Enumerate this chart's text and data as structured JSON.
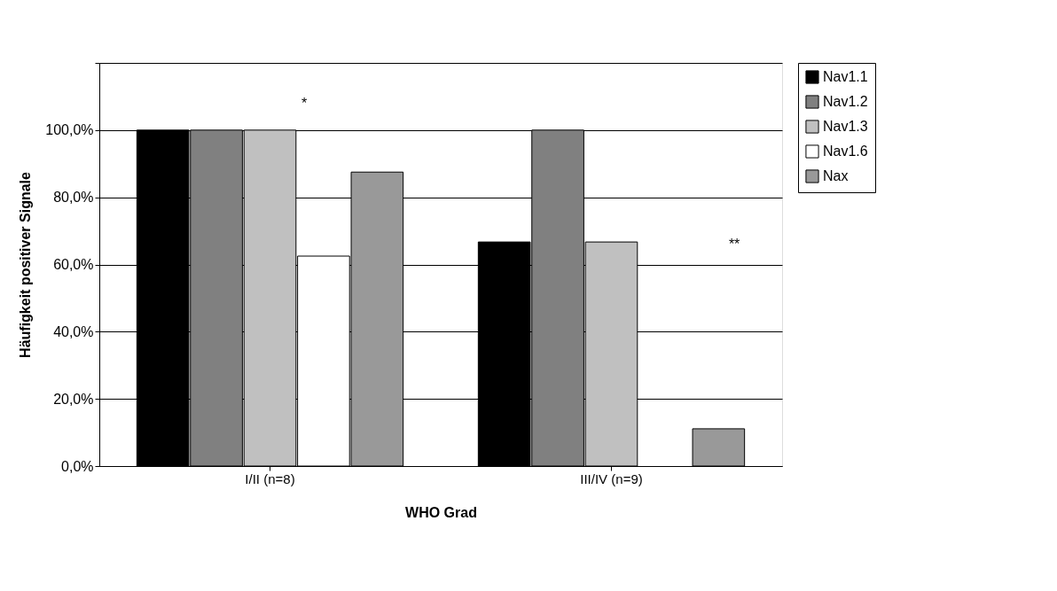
{
  "chart_data": {
    "type": "bar",
    "xlabel": "WHO Grad",
    "ylabel": "Häufigkeit positiver Signale",
    "categories": [
      "I/II (n=8)",
      "III/IV (n=9)"
    ],
    "series": [
      {
        "name": "Nav1.1",
        "color": "#000000",
        "values": [
          100,
          66.7
        ]
      },
      {
        "name": "Nav1.2",
        "color": "#808080",
        "values": [
          100,
          100
        ]
      },
      {
        "name": "Nav1.3",
        "color": "#c0c0c0",
        "values": [
          100,
          66.7
        ]
      },
      {
        "name": "Nav1.6",
        "color": "#ffffff",
        "values": [
          62.5,
          null
        ]
      },
      {
        "name": "Nax",
        "color": "#999999",
        "values": [
          87.5,
          11.1
        ]
      }
    ],
    "ylim": [
      0,
      120
    ],
    "yticks": [
      {
        "value": 0,
        "label": "0,0%"
      },
      {
        "value": 20,
        "label": "20,0%"
      },
      {
        "value": 40,
        "label": "40,0%"
      },
      {
        "value": 60,
        "label": "60,0%"
      },
      {
        "value": 80,
        "label": "80,0%"
      },
      {
        "value": 100,
        "label": "100,0%"
      },
      {
        "value": 120,
        "label": null
      }
    ],
    "grid": "y",
    "legend": "right",
    "annotations": [
      "*",
      "**"
    ]
  }
}
